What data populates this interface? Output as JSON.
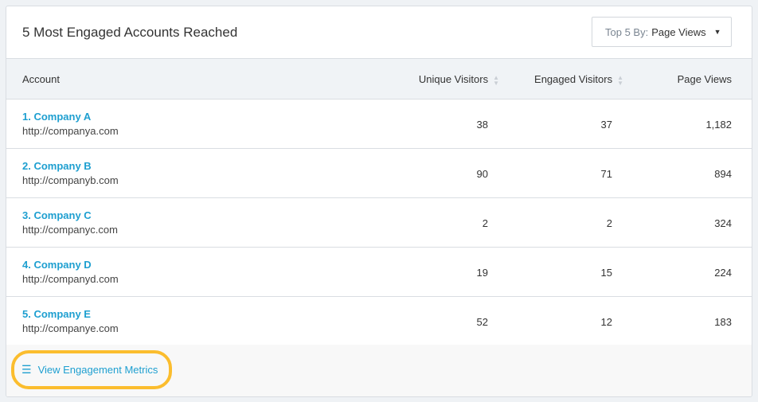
{
  "header": {
    "title": "5 Most Engaged Accounts Reached",
    "dropdown": {
      "prefix": "Top 5 By:",
      "value": "Page Views"
    }
  },
  "table": {
    "columns": [
      "Account",
      "Unique Visitors",
      "Engaged Visitors",
      "Page Views"
    ],
    "rows": [
      {
        "name": "1. Company A",
        "url": "http://companya.com",
        "unique": "38",
        "engaged": "37",
        "views": "1,182"
      },
      {
        "name": "2. Company B",
        "url": "http://companyb.com",
        "unique": "90",
        "engaged": "71",
        "views": "894"
      },
      {
        "name": "3. Company C",
        "url": "http://companyc.com",
        "unique": "2",
        "engaged": "2",
        "views": "324"
      },
      {
        "name": "4. Company D",
        "url": "http://companyd.com",
        "unique": "19",
        "engaged": "15",
        "views": "224"
      },
      {
        "name": "5. Company E",
        "url": "http://companye.com",
        "unique": "52",
        "engaged": "12",
        "views": "183"
      }
    ]
  },
  "footer": {
    "link_label": "View Engagement Metrics",
    "icon": "list-icon",
    "highlight_color": "#fbbd2e"
  }
}
